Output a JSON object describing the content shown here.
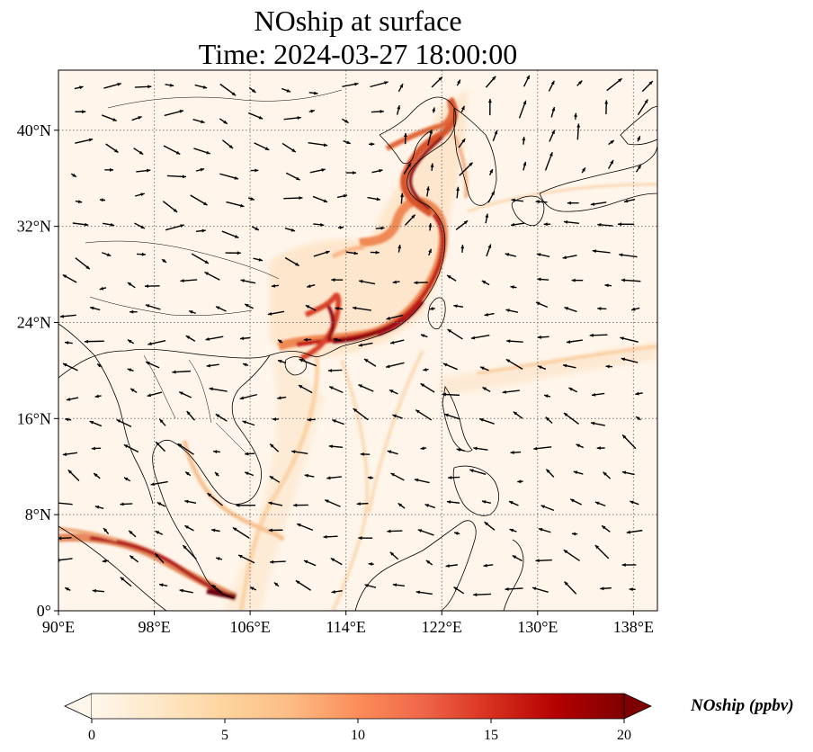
{
  "title": {
    "line1": "NOship at surface",
    "line2": "Time: 2024-03-27 18:00:00"
  },
  "map": {
    "lon_range": [
      90,
      140
    ],
    "lat_range": [
      0,
      45
    ],
    "lon_ticks": [
      {
        "value": 90,
        "label": "90°E"
      },
      {
        "value": 98,
        "label": "98°E"
      },
      {
        "value": 106,
        "label": "106°E"
      },
      {
        "value": 114,
        "label": "114°E"
      },
      {
        "value": 122,
        "label": "122°E"
      },
      {
        "value": 130,
        "label": "130°E"
      },
      {
        "value": 138,
        "label": "138°E"
      }
    ],
    "lat_ticks": [
      {
        "value": 0,
        "label": "0°"
      },
      {
        "value": 8,
        "label": "8°N"
      },
      {
        "value": 16,
        "label": "16°N"
      },
      {
        "value": 24,
        "label": "24°N"
      },
      {
        "value": 32,
        "label": "32°N"
      },
      {
        "value": 40,
        "label": "40°N"
      }
    ],
    "gridlines": true,
    "gridline_style": "dotted",
    "background_color": "#fff5ea",
    "coast_color": "#000000",
    "plume_colors": [
      "#fdd9b0",
      "#f4a36c",
      "#d9532b",
      "#a50f15",
      "#67000d"
    ],
    "wind_vectors": "black arrows",
    "colormap": "OrRd",
    "variable": "NOship",
    "level": "surface"
  },
  "colorbar": {
    "min": 0,
    "max": 20,
    "extend": "both",
    "ticks": [
      {
        "value": 0,
        "label": "0"
      },
      {
        "value": 5,
        "label": "5"
      },
      {
        "value": 10,
        "label": "10"
      },
      {
        "value": 15,
        "label": "15"
      },
      {
        "value": 20,
        "label": "20"
      }
    ],
    "label": "NOship (ppbv)",
    "colors": [
      "#fff7ec",
      "#fee8c8",
      "#fdd49e",
      "#fdbb84",
      "#fc8d59",
      "#ef6548",
      "#d7301f",
      "#b30000",
      "#7f0000"
    ]
  }
}
